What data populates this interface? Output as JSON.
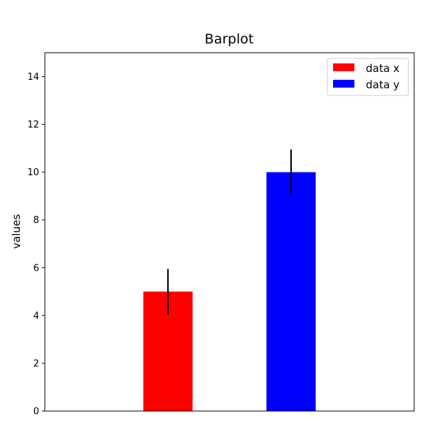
{
  "chart_data": {
    "type": "bar",
    "title": "Barplot",
    "xlabel": "",
    "ylabel": "values",
    "ylim": [
      0,
      15
    ],
    "yticks": [
      0,
      2,
      4,
      6,
      8,
      10,
      12,
      14
    ],
    "x_axis_ticks_visible": false,
    "grid": false,
    "legend_position": "upper right",
    "series": [
      {
        "name": "data x",
        "value": 5,
        "error": 0.95,
        "color": "#ff0000"
      },
      {
        "name": "data y",
        "value": 10,
        "error": 0.95,
        "color": "#0000ff"
      }
    ]
  }
}
